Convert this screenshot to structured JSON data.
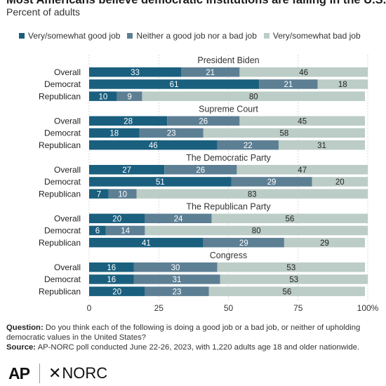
{
  "title": "Most Americans believe democratic institutions are failing in the U.S.",
  "subtitle": "Percent of adults",
  "colors": {
    "good": "#1a5f7e",
    "neither": "#5d7f94",
    "bad": "#bcccc6",
    "text": "#333333"
  },
  "chart_data": {
    "type": "bar",
    "orientation": "horizontal",
    "stacked": true,
    "series": [
      {
        "name": "Very/somewhat good job"
      },
      {
        "name": "Neither a good job nor a bad job"
      },
      {
        "name": "Very/somewhat bad job"
      }
    ],
    "groups": [
      {
        "name": "President Biden",
        "rows": [
          {
            "label": "Overall",
            "values": [
              33,
              21,
              46
            ]
          },
          {
            "label": "Democrat",
            "values": [
              61,
              21,
              18
            ]
          },
          {
            "label": "Republican",
            "values": [
              10,
              9,
              80
            ]
          }
        ]
      },
      {
        "name": "Supreme Court",
        "rows": [
          {
            "label": "Overall",
            "values": [
              28,
              26,
              45
            ]
          },
          {
            "label": "Democrat",
            "values": [
              18,
              23,
              58
            ]
          },
          {
            "label": "Republican",
            "values": [
              46,
              22,
              31
            ]
          }
        ]
      },
      {
        "name": "The Democratic Party",
        "rows": [
          {
            "label": "Overall",
            "values": [
              27,
              26,
              47
            ]
          },
          {
            "label": "Democrat",
            "values": [
              51,
              29,
              20
            ]
          },
          {
            "label": "Republican",
            "values": [
              7,
              10,
              83
            ]
          }
        ]
      },
      {
        "name": "The Republican Party",
        "rows": [
          {
            "label": "Overall",
            "values": [
              20,
              24,
              56
            ]
          },
          {
            "label": "Democrat",
            "values": [
              6,
              14,
              80
            ]
          },
          {
            "label": "Republican",
            "values": [
              41,
              29,
              29
            ]
          }
        ]
      },
      {
        "name": "Congress",
        "rows": [
          {
            "label": "Overall",
            "values": [
              16,
              30,
              53
            ]
          },
          {
            "label": "Democrat",
            "values": [
              16,
              31,
              53
            ]
          },
          {
            "label": "Republican",
            "values": [
              20,
              23,
              56
            ]
          }
        ]
      }
    ],
    "xlim": [
      0,
      100
    ],
    "xticks": [
      "0",
      "25",
      "50",
      "75",
      "100%"
    ],
    "grid": true,
    "legend": "top"
  },
  "footer": {
    "question_label": "Question:",
    "question_text": "Do you think each of the following is doing a good job or a bad job, or neither of upholding democratic values in the United States?",
    "source_label": "Source:",
    "source_text": "AP-NORC poll conducted June 22-26, 2023, with 1,220 adults age 18 and older nationwide."
  },
  "logos": {
    "ap": "AP",
    "norc": "NORC"
  }
}
